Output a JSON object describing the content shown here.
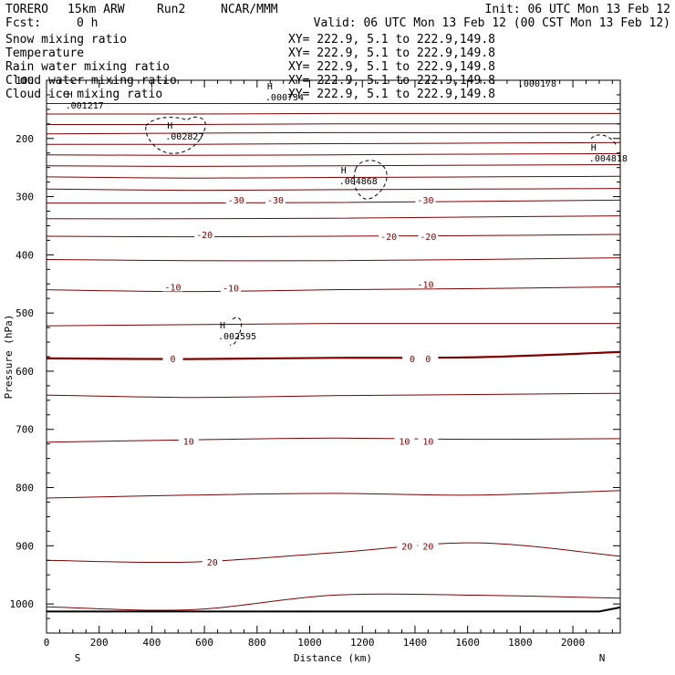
{
  "header": {
    "model": "TORERO",
    "resolution": "15km ARW",
    "run": "Run2",
    "org": "NCAR/MMM",
    "init": "Init: 06 UTC Mon 13 Feb 12",
    "fcst_label": "Fcst:",
    "fcst_value": "0 h",
    "valid": "Valid: 06 UTC Mon 13 Feb 12 (00 CST Mon 13 Feb 12)"
  },
  "legend": [
    {
      "label": "Snow mixing ratio",
      "xy": "XY= 222.9,  5.1 to 222.9,149.8",
      "color": "#000000"
    },
    {
      "label": "Temperature",
      "xy": "XY= 222.9,  5.1 to 222.9,149.8",
      "color": "#cc0000"
    },
    {
      "label": "Rain water mixing ratio",
      "xy": "XY= 222.9,  5.1 to 222.9,149.8",
      "color": "#cc0000"
    },
    {
      "label": "Cloud water mixing ratio",
      "xy": "XY= 222.9,  5.1 to 222.9,149.8",
      "color": "#0000cc"
    },
    {
      "label": "Cloud ice mixing ratio",
      "xy": "XY= 222.9,  5.1 to 222.9,149.8",
      "color": "#000000"
    }
  ],
  "colors": {
    "isotherm": "#800000",
    "frame": "#000000",
    "ground": "#000000",
    "rain": "#cc0000",
    "cloud_water": "#0000cc"
  },
  "chart_data": {
    "type": "contour",
    "xlabel": "Distance (km)",
    "ylabel": "Pressure (hPa)",
    "xlim": [
      0,
      2180
    ],
    "ylim": [
      1050,
      100
    ],
    "xticks": [
      "0",
      "200",
      "400",
      "600",
      "800",
      "1000",
      "1200",
      "1400",
      "1600",
      "1800",
      "2000"
    ],
    "yticks": [
      "100",
      "200",
      "300",
      "400",
      "500",
      "600",
      "700",
      "800",
      "900",
      "1000"
    ],
    "left_end": "S",
    "right_end": "N",
    "isotherms": [
      {
        "temp": -75,
        "p": [
          140,
          140,
          140,
          140,
          140
        ]
      },
      {
        "temp": -70,
        "p": [
          158,
          158,
          157,
          157,
          157
        ]
      },
      {
        "temp": -65,
        "p": [
          176,
          176,
          175,
          175,
          175
        ]
      },
      {
        "temp": -60,
        "p": [
          192,
          191,
          190,
          190,
          190
        ]
      },
      {
        "temp": -55,
        "p": [
          210,
          210,
          209,
          208,
          207
        ]
      },
      {
        "temp": -50,
        "p": [
          228,
          229,
          228,
          227,
          226
        ]
      },
      {
        "temp": -45,
        "p": [
          247,
          248,
          247,
          246,
          245
        ]
      },
      {
        "temp": -40,
        "p": [
          266,
          268,
          267,
          266,
          265
        ]
      },
      {
        "temp": -35,
        "p": [
          287,
          289,
          288,
          287,
          286
        ]
      },
      {
        "temp": -30,
        "p": [
          311,
          311,
          310,
          308,
          306
        ]
      },
      {
        "temp": -25,
        "p": [
          338,
          338,
          337,
          335,
          333
        ]
      },
      {
        "temp": -20,
        "p": [
          368,
          369,
          368,
          367,
          365
        ]
      },
      {
        "temp": -15,
        "p": [
          408,
          410,
          410,
          408,
          405
        ]
      },
      {
        "temp": -10,
        "p": [
          460,
          463,
          460,
          458,
          455
        ]
      },
      {
        "temp": -5,
        "p": [
          522,
          520,
          518,
          518,
          518
        ]
      },
      {
        "temp": 0,
        "p": [
          578,
          579,
          577,
          576,
          567
        ]
      },
      {
        "temp": 5,
        "p": [
          641,
          645,
          642,
          640,
          638
        ]
      },
      {
        "temp": 10,
        "p": [
          722,
          718,
          715,
          717,
          716
        ]
      },
      {
        "temp": 15,
        "p": [
          818,
          813,
          810,
          813,
          805
        ]
      },
      {
        "temp": 20,
        "p": [
          925,
          928,
          912,
          895,
          918
        ]
      },
      {
        "temp": 25,
        "p": [
          1005,
          1010,
          985,
          985,
          990
        ]
      }
    ],
    "isotherm_x": [
      0,
      545,
      1090,
      1635,
      2180
    ],
    "contour_labels": [
      {
        "text": "-30",
        "x": 720,
        "p": 305
      },
      {
        "text": "-30",
        "x": 870,
        "p": 305
      },
      {
        "text": "-30",
        "x": 1440,
        "p": 305
      },
      {
        "text": "-20",
        "x": 600,
        "p": 365
      },
      {
        "text": "-20",
        "x": 1300,
        "p": 368
      },
      {
        "text": "-20",
        "x": 1450,
        "p": 368
      },
      {
        "text": "-10",
        "x": 480,
        "p": 455
      },
      {
        "text": "-10",
        "x": 700,
        "p": 457
      },
      {
        "text": "-10",
        "x": 1440,
        "p": 450
      },
      {
        "text": "0",
        "x": 480,
        "p": 578
      },
      {
        "text": "0",
        "x": 1390,
        "p": 578
      },
      {
        "text": "0",
        "x": 1450,
        "p": 578
      },
      {
        "text": "10",
        "x": 540,
        "p": 720
      },
      {
        "text": "10",
        "x": 1360,
        "p": 720
      },
      {
        "text": "10",
        "x": 1450,
        "p": 720
      },
      {
        "text": "20",
        "x": 630,
        "p": 928
      },
      {
        "text": "20",
        "x": 1370,
        "p": 900
      },
      {
        "text": "20",
        "x": 1450,
        "p": 900
      }
    ],
    "maxima": [
      {
        "label": "H",
        "value": ".001217",
        "x": 120,
        "p": 152
      },
      {
        "label": "H",
        "value": ".000734",
        "x": 880,
        "p": 138
      },
      {
        "label": "H",
        "value": ".002827",
        "x": 500,
        "p": 205
      },
      {
        "label": "H",
        "value": ".004868",
        "x": 1160,
        "p": 282
      },
      {
        "label": "H",
        "value": ".002595",
        "x": 700,
        "p": 548
      },
      {
        "label": "H",
        "value": ".004818",
        "x": 2110,
        "p": 243
      },
      {
        "label": "",
        "value": ".000178",
        "x": 1840,
        "p": 114
      }
    ],
    "ground_line": {
      "x": [
        0,
        2100,
        2180
      ],
      "p": [
        1013,
        1013,
        1006
      ]
    }
  }
}
